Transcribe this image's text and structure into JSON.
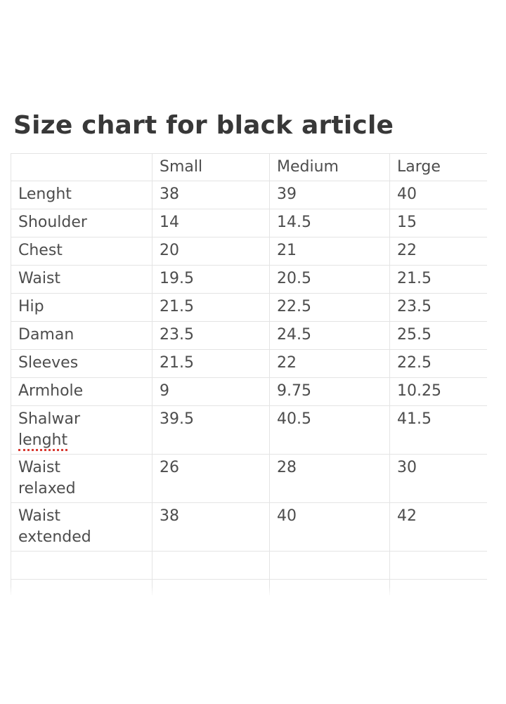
{
  "document": {
    "title": "Size chart for black article"
  },
  "size_chart": {
    "columns": [
      "Small",
      "Medium",
      "Large"
    ],
    "rows": [
      {
        "label": "Lenght",
        "values": [
          "38",
          "39",
          "40"
        ]
      },
      {
        "label": "Shoulder",
        "values": [
          "14",
          "14.5",
          "15"
        ]
      },
      {
        "label": "Chest",
        "values": [
          "20",
          "21",
          "22"
        ]
      },
      {
        "label": "Waist",
        "values": [
          "19.5",
          "20.5",
          "21.5"
        ]
      },
      {
        "label": "Hip",
        "values": [
          "21.5",
          "22.5",
          "23.5"
        ]
      },
      {
        "label": "Daman",
        "values": [
          "23.5",
          "24.5",
          "25.5"
        ]
      },
      {
        "label": "Sleeves",
        "values": [
          "21.5",
          "22",
          "22.5"
        ]
      },
      {
        "label": "Armhole",
        "values": [
          "9",
          "9.75",
          "10.25"
        ]
      },
      {
        "label": "Shalwar lenght",
        "values": [
          "39.5",
          "40.5",
          "41.5"
        ],
        "misspelled_word": "lenght"
      },
      {
        "label": "Waist relaxed",
        "values": [
          "26",
          "28",
          "30"
        ]
      },
      {
        "label": "Waist extended",
        "values": [
          "38",
          "40",
          "42"
        ]
      },
      {
        "label": "",
        "values": [
          "",
          "",
          ""
        ]
      },
      {
        "label": "",
        "values": [
          "",
          "",
          ""
        ]
      }
    ]
  },
  "colors": {
    "background": "#ffffff",
    "title_text": "#383838",
    "body_text": "#4d4d4d",
    "table_border": "#e4e4e4",
    "spellcheck_underline": "#d93a32"
  }
}
